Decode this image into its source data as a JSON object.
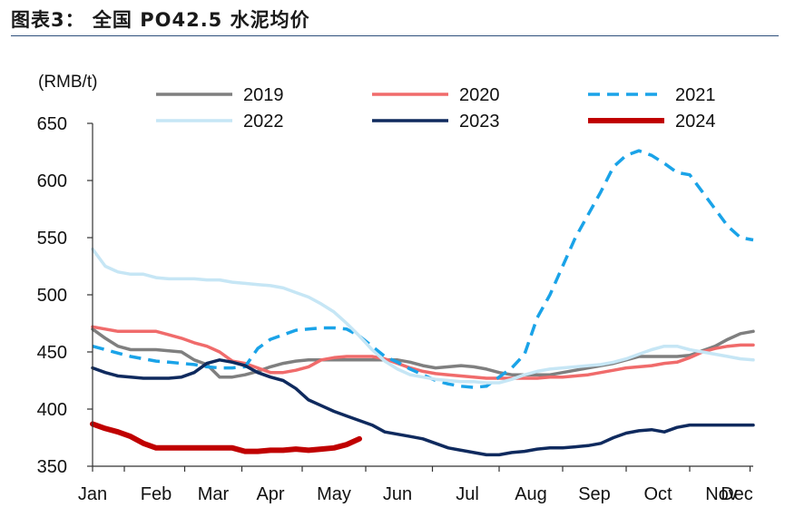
{
  "header": {
    "title": "图表3：  全国 PO42.5 水泥均价"
  },
  "chart_data": {
    "type": "line",
    "title": "全国 PO42.5 水泥均价",
    "unit": "(RMB/t)",
    "xlabel": "",
    "ylabel": "",
    "ylim": [
      350,
      650
    ],
    "yticks": [
      350,
      400,
      450,
      500,
      550,
      600,
      650
    ],
    "xlim": [
      0,
      52
    ],
    "categories": [
      "Jan",
      "Feb",
      "Mar",
      "Apr",
      "May",
      "Jun",
      "Jul",
      "Aug",
      "Sep",
      "Oct",
      "Nov",
      "Dec"
    ],
    "category_weeks": [
      0,
      5,
      9.5,
      14,
      19,
      24,
      29.5,
      34.5,
      39.5,
      44.5,
      49.5,
      54
    ],
    "grid": false,
    "legend_position": "top",
    "series": [
      {
        "name": "2019",
        "color": "#7f7f7f",
        "width": 3.5,
        "dash": "",
        "x": [
          0,
          1,
          2,
          3,
          4,
          5,
          6,
          7,
          8,
          9,
          10,
          11,
          12,
          13,
          14,
          15,
          16,
          17,
          18,
          19,
          20,
          21,
          22,
          23,
          24,
          25,
          26,
          27,
          28,
          29,
          30,
          31,
          32,
          33,
          34,
          35,
          36,
          37,
          38,
          39,
          40,
          41,
          42,
          43,
          44,
          45,
          46,
          47,
          48,
          49,
          50,
          51,
          52
        ],
        "values": [
          470,
          462,
          455,
          452,
          452,
          452,
          451,
          450,
          443,
          439,
          428,
          428,
          430,
          433,
          437,
          440,
          442,
          443,
          443,
          443,
          443,
          443,
          443,
          443,
          443,
          441,
          438,
          436,
          437,
          438,
          437,
          435,
          432,
          430,
          430,
          430,
          430,
          432,
          434,
          436,
          438,
          440,
          443,
          446,
          446,
          446,
          446,
          447,
          451,
          455,
          461,
          466,
          468
        ]
      },
      {
        "name": "2020",
        "color": "#f06b6b",
        "width": 3.5,
        "dash": "",
        "x": [
          0,
          1,
          2,
          3,
          4,
          5,
          6,
          7,
          8,
          9,
          10,
          11,
          12,
          13,
          14,
          15,
          16,
          17,
          18,
          19,
          20,
          21,
          22,
          23,
          24,
          25,
          26,
          27,
          28,
          29,
          30,
          31,
          32,
          33,
          34,
          35,
          36,
          37,
          38,
          39,
          40,
          41,
          42,
          43,
          44,
          45,
          46,
          47,
          48,
          49,
          50,
          51,
          52
        ],
        "values": [
          472,
          470,
          468,
          468,
          468,
          468,
          465,
          462,
          458,
          455,
          450,
          442,
          440,
          436,
          432,
          432,
          434,
          437,
          443,
          445,
          446,
          446,
          446,
          444,
          440,
          436,
          433,
          431,
          430,
          429,
          428,
          427,
          427,
          427,
          427,
          427,
          428,
          428,
          429,
          430,
          432,
          434,
          436,
          437,
          438,
          440,
          441,
          445,
          450,
          453,
          455,
          456,
          456
        ]
      },
      {
        "name": "2021",
        "color": "#1aa3e8",
        "width": 3.5,
        "dash": "13,8",
        "x": [
          0,
          1,
          2,
          3,
          4,
          5,
          6,
          7,
          8,
          9,
          10,
          11,
          12,
          13,
          14,
          15,
          16,
          17,
          18,
          19,
          20,
          21,
          22,
          23,
          24,
          25,
          26,
          27,
          28,
          29,
          30,
          31,
          32,
          33,
          34,
          35,
          36,
          37,
          38,
          39,
          40,
          41,
          42,
          43,
          44,
          45,
          46,
          47,
          48,
          49,
          50,
          51,
          52
        ],
        "values": [
          455,
          452,
          449,
          446,
          444,
          442,
          441,
          440,
          439,
          437,
          436,
          436,
          437,
          453,
          461,
          465,
          469,
          470,
          471,
          471,
          470,
          464,
          455,
          446,
          441,
          435,
          430,
          425,
          422,
          420,
          419,
          420,
          428,
          436,
          448,
          480,
          500,
          525,
          550,
          570,
          590,
          612,
          622,
          626,
          622,
          615,
          607,
          605,
          590,
          575,
          560,
          550,
          548
        ]
      },
      {
        "name": "2022",
        "color": "#c6e6f5",
        "width": 3.5,
        "dash": "",
        "x": [
          0,
          1,
          2,
          3,
          4,
          5,
          6,
          7,
          8,
          9,
          10,
          11,
          12,
          13,
          14,
          15,
          16,
          17,
          18,
          19,
          20,
          21,
          22,
          23,
          24,
          25,
          26,
          27,
          28,
          29,
          30,
          31,
          32,
          33,
          34,
          35,
          36,
          37,
          38,
          39,
          40,
          41,
          42,
          43,
          44,
          45,
          46,
          47,
          48,
          49,
          50,
          51,
          52
        ],
        "values": [
          540,
          525,
          520,
          518,
          518,
          515,
          514,
          514,
          514,
          513,
          513,
          511,
          510,
          509,
          508,
          506,
          502,
          498,
          492,
          485,
          475,
          464,
          452,
          442,
          435,
          430,
          428,
          426,
          425,
          424,
          424,
          423,
          423,
          426,
          430,
          433,
          435,
          436,
          437,
          438,
          439,
          441,
          444,
          448,
          452,
          455,
          455,
          452,
          450,
          448,
          446,
          444,
          443
        ]
      },
      {
        "name": "2023",
        "color": "#0f2a5e",
        "width": 3.5,
        "dash": "",
        "x": [
          0,
          1,
          2,
          3,
          4,
          5,
          6,
          7,
          8,
          9,
          10,
          11,
          12,
          13,
          14,
          15,
          16,
          17,
          18,
          19,
          20,
          21,
          22,
          23,
          24,
          25,
          26,
          27,
          28,
          29,
          30,
          31,
          32,
          33,
          34,
          35,
          36,
          37,
          38,
          39,
          40,
          41,
          42,
          43,
          44,
          45,
          46,
          47,
          48,
          49,
          50,
          51,
          52
        ],
        "values": [
          436,
          432,
          429,
          428,
          427,
          427,
          427,
          428,
          432,
          440,
          443,
          441,
          438,
          432,
          428,
          425,
          418,
          408,
          403,
          398,
          394,
          390,
          386,
          380,
          378,
          376,
          374,
          370,
          366,
          364,
          362,
          360,
          360,
          362,
          363,
          365,
          366,
          366,
          367,
          368,
          370,
          375,
          379,
          381,
          382,
          380,
          384,
          386,
          386,
          386,
          386,
          386,
          386
        ]
      },
      {
        "name": "2024",
        "color": "#c00000",
        "width": 6,
        "dash": "",
        "x": [
          0,
          1,
          2,
          3,
          4,
          5,
          6,
          7,
          8,
          9,
          10,
          11,
          12,
          13,
          14,
          15,
          16,
          17,
          18,
          19,
          20,
          21
        ],
        "values": [
          387,
          383,
          380,
          376,
          370,
          366,
          366,
          366,
          366,
          366,
          366,
          366,
          363,
          363,
          364,
          364,
          365,
          364,
          365,
          366,
          369,
          374
        ]
      }
    ]
  }
}
